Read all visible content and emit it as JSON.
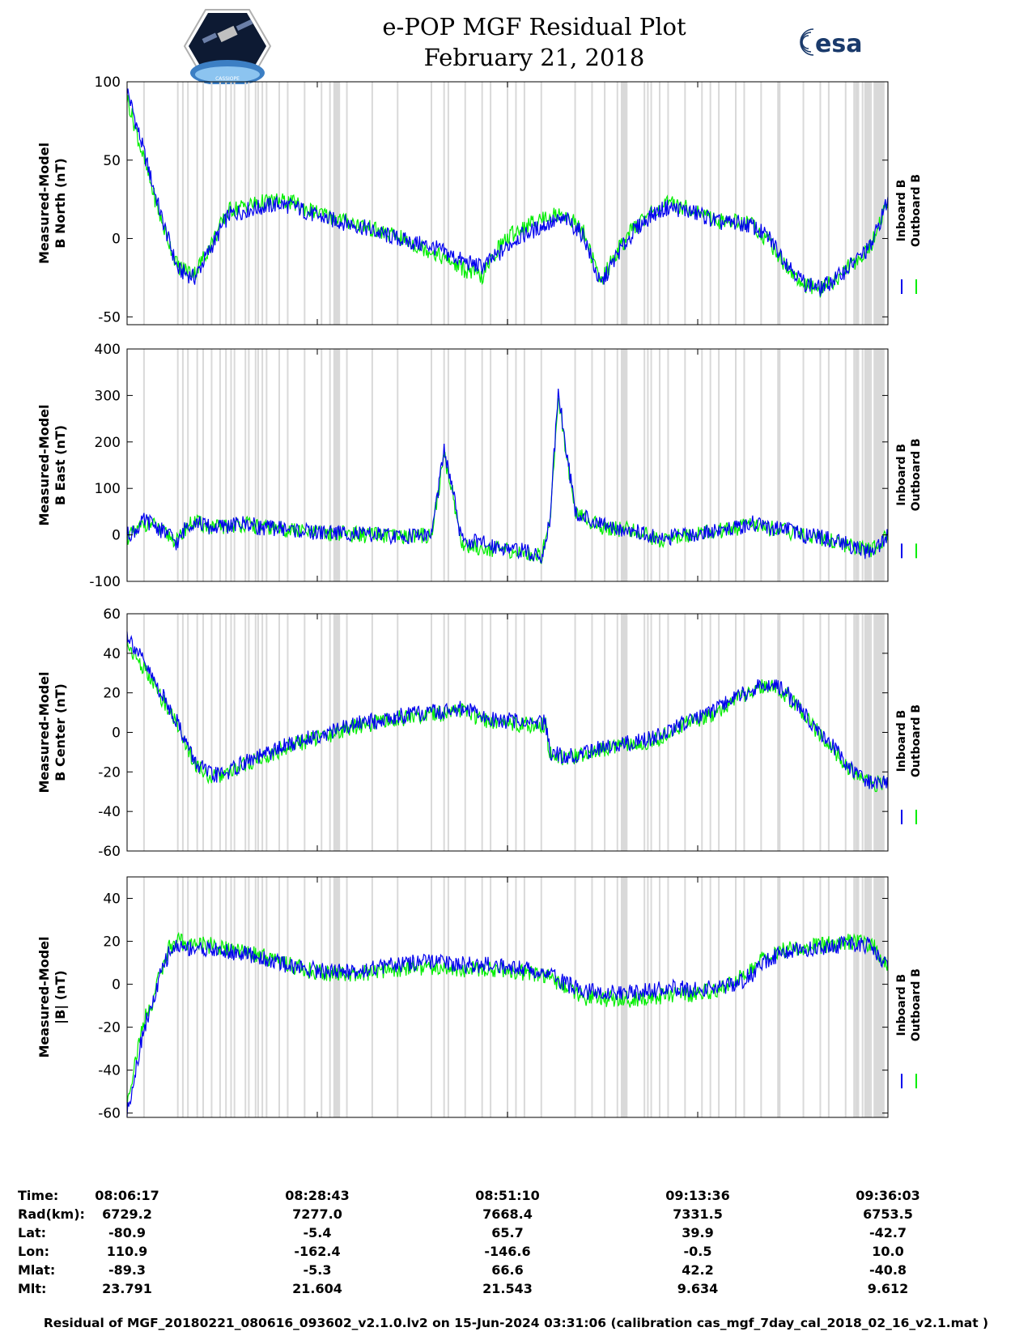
{
  "title": "e-POP MGF Residual Plot",
  "date": "February 21, 2018",
  "logos": {
    "left": "cassiope-logo",
    "left_text": "CASSIOPE",
    "right": "esa-logo",
    "right_text": "esa"
  },
  "legend": {
    "inboard": "Inboard B",
    "outboard": "Outboard B"
  },
  "colors": {
    "inboard": "#0000ee",
    "outboard": "#00ee00",
    "gap_shading": "#d9d9d9"
  },
  "chart_data": [
    {
      "type": "line",
      "ylabel": [
        "Measured-Model",
        "B North (nT)"
      ],
      "ylim": [
        -55,
        100
      ],
      "yticks": [
        -50,
        0,
        50,
        100
      ],
      "x": [
        0,
        2,
        4,
        6,
        8,
        10,
        12,
        14,
        16,
        18,
        20,
        22,
        24,
        26,
        28,
        30,
        32,
        34,
        36,
        38,
        40,
        42,
        44,
        46,
        48,
        50,
        52,
        54,
        56,
        58,
        60,
        62,
        64,
        66,
        68,
        70,
        72,
        74,
        76,
        78,
        80,
        82,
        84,
        86,
        88,
        90
      ],
      "series": [
        {
          "name": "Inboard B",
          "values": [
            95,
            55,
            15,
            -20,
            -25,
            -5,
            15,
            18,
            20,
            22,
            20,
            15,
            12,
            10,
            7,
            3,
            0,
            -3,
            -5,
            -10,
            -15,
            -18,
            -10,
            0,
            5,
            10,
            12,
            2,
            -30,
            -10,
            5,
            15,
            20,
            18,
            15,
            10,
            10,
            8,
            0,
            -15,
            -28,
            -32,
            -25,
            -15,
            -5,
            25
          ]
        },
        {
          "name": "Outboard B",
          "values": [
            90,
            50,
            12,
            -18,
            -22,
            -3,
            18,
            21,
            23,
            24,
            22,
            17,
            14,
            11,
            8,
            4,
            1,
            -4,
            -8,
            -14,
            -20,
            -25,
            -5,
            5,
            10,
            15,
            15,
            4,
            -28,
            -8,
            7,
            17,
            22,
            20,
            16,
            11,
            11,
            9,
            -2,
            -18,
            -30,
            -33,
            -25,
            -15,
            -5,
            25
          ]
        }
      ]
    },
    {
      "type": "line",
      "ylabel": [
        "Measured-Model",
        "B East (nT)"
      ],
      "ylim": [
        -100,
        400
      ],
      "yticks": [
        -100,
        0,
        100,
        200,
        300,
        400
      ],
      "x": [
        0,
        1,
        2,
        3,
        4,
        5,
        6,
        7,
        8,
        10,
        12,
        14,
        16,
        18,
        20,
        22,
        24,
        26,
        28,
        30,
        32,
        34,
        36,
        37.5,
        38.5,
        39.5,
        41,
        44,
        47,
        49,
        50,
        51,
        53,
        56,
        60,
        63,
        66,
        70,
        72,
        74,
        76,
        78,
        80,
        82,
        84,
        86,
        88,
        90
      ],
      "series": [
        {
          "name": "Inboard B",
          "values": [
            0,
            10,
            30,
            25,
            10,
            0,
            -20,
            20,
            30,
            15,
            20,
            25,
            15,
            15,
            10,
            5,
            5,
            5,
            0,
            0,
            -5,
            0,
            0,
            180,
            100,
            -10,
            -15,
            -25,
            -35,
            -50,
            30,
            310,
            50,
            20,
            10,
            -10,
            0,
            10,
            15,
            25,
            15,
            10,
            0,
            -5,
            -15,
            -25,
            -40,
            0
          ]
        },
        {
          "name": "Outboard B",
          "values": [
            -5,
            5,
            25,
            22,
            8,
            -2,
            -15,
            18,
            28,
            14,
            19,
            24,
            14,
            14,
            9,
            4,
            4,
            4,
            -1,
            -1,
            -6,
            -1,
            -1,
            170,
            95,
            -20,
            -25,
            -32,
            -40,
            -45,
            25,
            300,
            45,
            18,
            9,
            -11,
            -1,
            9,
            14,
            24,
            14,
            9,
            -1,
            -6,
            -16,
            -26,
            -35,
            0
          ]
        }
      ]
    },
    {
      "type": "line",
      "ylabel": [
        "Measured-Model",
        "B Center (nT)"
      ],
      "ylim": [
        -60,
        60
      ],
      "yticks": [
        -60,
        -40,
        -20,
        0,
        20,
        40,
        60
      ],
      "x": [
        0,
        2,
        4,
        6,
        8,
        10,
        12,
        14,
        16,
        18,
        20,
        22,
        24,
        26,
        28,
        30,
        32,
        34,
        36,
        38,
        40,
        42,
        44,
        46,
        48,
        49.5,
        50,
        52,
        54,
        56,
        58,
        60,
        62,
        64,
        66,
        68,
        70,
        72,
        74,
        76,
        78,
        80,
        82,
        84,
        86,
        88,
        90
      ],
      "series": [
        {
          "name": "Inboard B",
          "values": [
            50,
            35,
            20,
            5,
            -15,
            -22,
            -20,
            -15,
            -12,
            -8,
            -5,
            -2,
            0,
            3,
            5,
            6,
            8,
            9,
            10,
            11,
            12,
            8,
            6,
            6,
            5,
            5,
            -10,
            -12,
            -10,
            -8,
            -6,
            -5,
            -3,
            0,
            5,
            8,
            12,
            18,
            22,
            25,
            20,
            10,
            0,
            -10,
            -20,
            -25,
            -25
          ]
        },
        {
          "name": "Outboard B",
          "values": [
            45,
            32,
            18,
            4,
            -16,
            -23,
            -21,
            -16,
            -13,
            -9,
            -6,
            -3,
            -1,
            2,
            4,
            5,
            7,
            8,
            9,
            10,
            11,
            6,
            4,
            4,
            4,
            4,
            -11,
            -13,
            -11,
            -9,
            -7,
            -6,
            -4,
            -1,
            4,
            7,
            11,
            17,
            21,
            24,
            19,
            9,
            -1,
            -11,
            -21,
            -26,
            -26
          ]
        }
      ]
    },
    {
      "type": "line",
      "ylabel": [
        "Measured-Model",
        "|B| (nT)"
      ],
      "ylim": [
        -62,
        50
      ],
      "yticks": [
        -60,
        -40,
        -20,
        0,
        20,
        40
      ],
      "x": [
        0,
        1,
        2,
        3,
        4,
        5,
        6,
        7,
        8,
        10,
        12,
        14,
        16,
        18,
        20,
        22,
        24,
        26,
        28,
        30,
        32,
        34,
        36,
        38,
        40,
        42,
        44,
        46,
        48,
        50,
        52,
        54,
        56,
        58,
        60,
        62,
        64,
        66,
        68,
        70,
        72,
        74,
        76,
        78,
        80,
        82,
        84,
        86,
        88,
        90
      ],
      "series": [
        {
          "name": "Inboard B",
          "values": [
            -60,
            -40,
            -20,
            -10,
            5,
            15,
            18,
            17,
            17,
            16,
            15,
            14,
            12,
            10,
            8,
            7,
            6,
            6,
            7,
            8,
            9,
            10,
            10,
            10,
            9,
            9,
            9,
            8,
            7,
            5,
            0,
            -3,
            -4,
            -4,
            -4,
            -3,
            -2,
            -2,
            -2,
            -2,
            0,
            5,
            12,
            15,
            16,
            17,
            18,
            19,
            18,
            8
          ]
        },
        {
          "name": "Outboard B",
          "values": [
            -55,
            -35,
            -17,
            -8,
            6,
            17,
            20,
            19,
            19,
            18,
            16,
            15,
            13,
            11,
            8,
            6,
            5,
            4,
            5,
            6,
            7,
            8,
            8,
            8,
            7,
            7,
            7,
            6,
            5,
            3,
            -2,
            -6,
            -7,
            -7,
            -7,
            -6,
            -5,
            -5,
            -4,
            -3,
            2,
            8,
            14,
            16,
            17,
            18,
            19,
            20,
            19,
            9
          ]
        }
      ]
    }
  ],
  "gap_positions": [
    2,
    6,
    6.6,
    7.2,
    8.3,
    9,
    10,
    11,
    11.7,
    12.3,
    12.7,
    14,
    14.4,
    15.2,
    15.5,
    16,
    16.5,
    18,
    19,
    21,
    23,
    24,
    25,
    26,
    29,
    32,
    36,
    37.5,
    38,
    40,
    42,
    43,
    45,
    46,
    47,
    49,
    53,
    55,
    56.5,
    58,
    59,
    61.2,
    61.6,
    62,
    63,
    64,
    66,
    68,
    69,
    70,
    72,
    73,
    75,
    77,
    80,
    82,
    83,
    85,
    86,
    87,
    88,
    89
  ],
  "gap_bands": [
    [
      24.4,
      25.2
    ],
    [
      58.4,
      59.2
    ],
    [
      77,
      77.3
    ],
    [
      86.1,
      86.6
    ],
    [
      87.2,
      87.9
    ],
    [
      88.3,
      89.6
    ]
  ],
  "info_table": {
    "labels": [
      "Time:",
      "Rad(km):",
      "Lat:",
      "Lon:",
      "Mlat:",
      "Mlt:"
    ],
    "columns": [
      [
        "08:06:17",
        "6729.2",
        "-80.9",
        "110.9",
        "-89.3",
        "23.791"
      ],
      [
        "08:28:43",
        "7277.0",
        "-5.4",
        "-162.4",
        "-5.3",
        "21.604"
      ],
      [
        "08:51:10",
        "7668.4",
        "65.7",
        "-146.6",
        "66.6",
        "21.543"
      ],
      [
        "09:13:36",
        "7331.5",
        "39.9",
        "-0.5",
        "42.2",
        "9.634"
      ],
      [
        "09:36:03",
        "6753.5",
        "-42.7",
        "10.0",
        "-40.8",
        "9.612"
      ]
    ]
  },
  "footer": "Residual of MGF_20180221_080616_093602_v2.1.0.lv2 on 15-Jun-2024 03:31:06 (calibration cas_mgf_7day_cal_2018_02_16_v2.1.mat )"
}
